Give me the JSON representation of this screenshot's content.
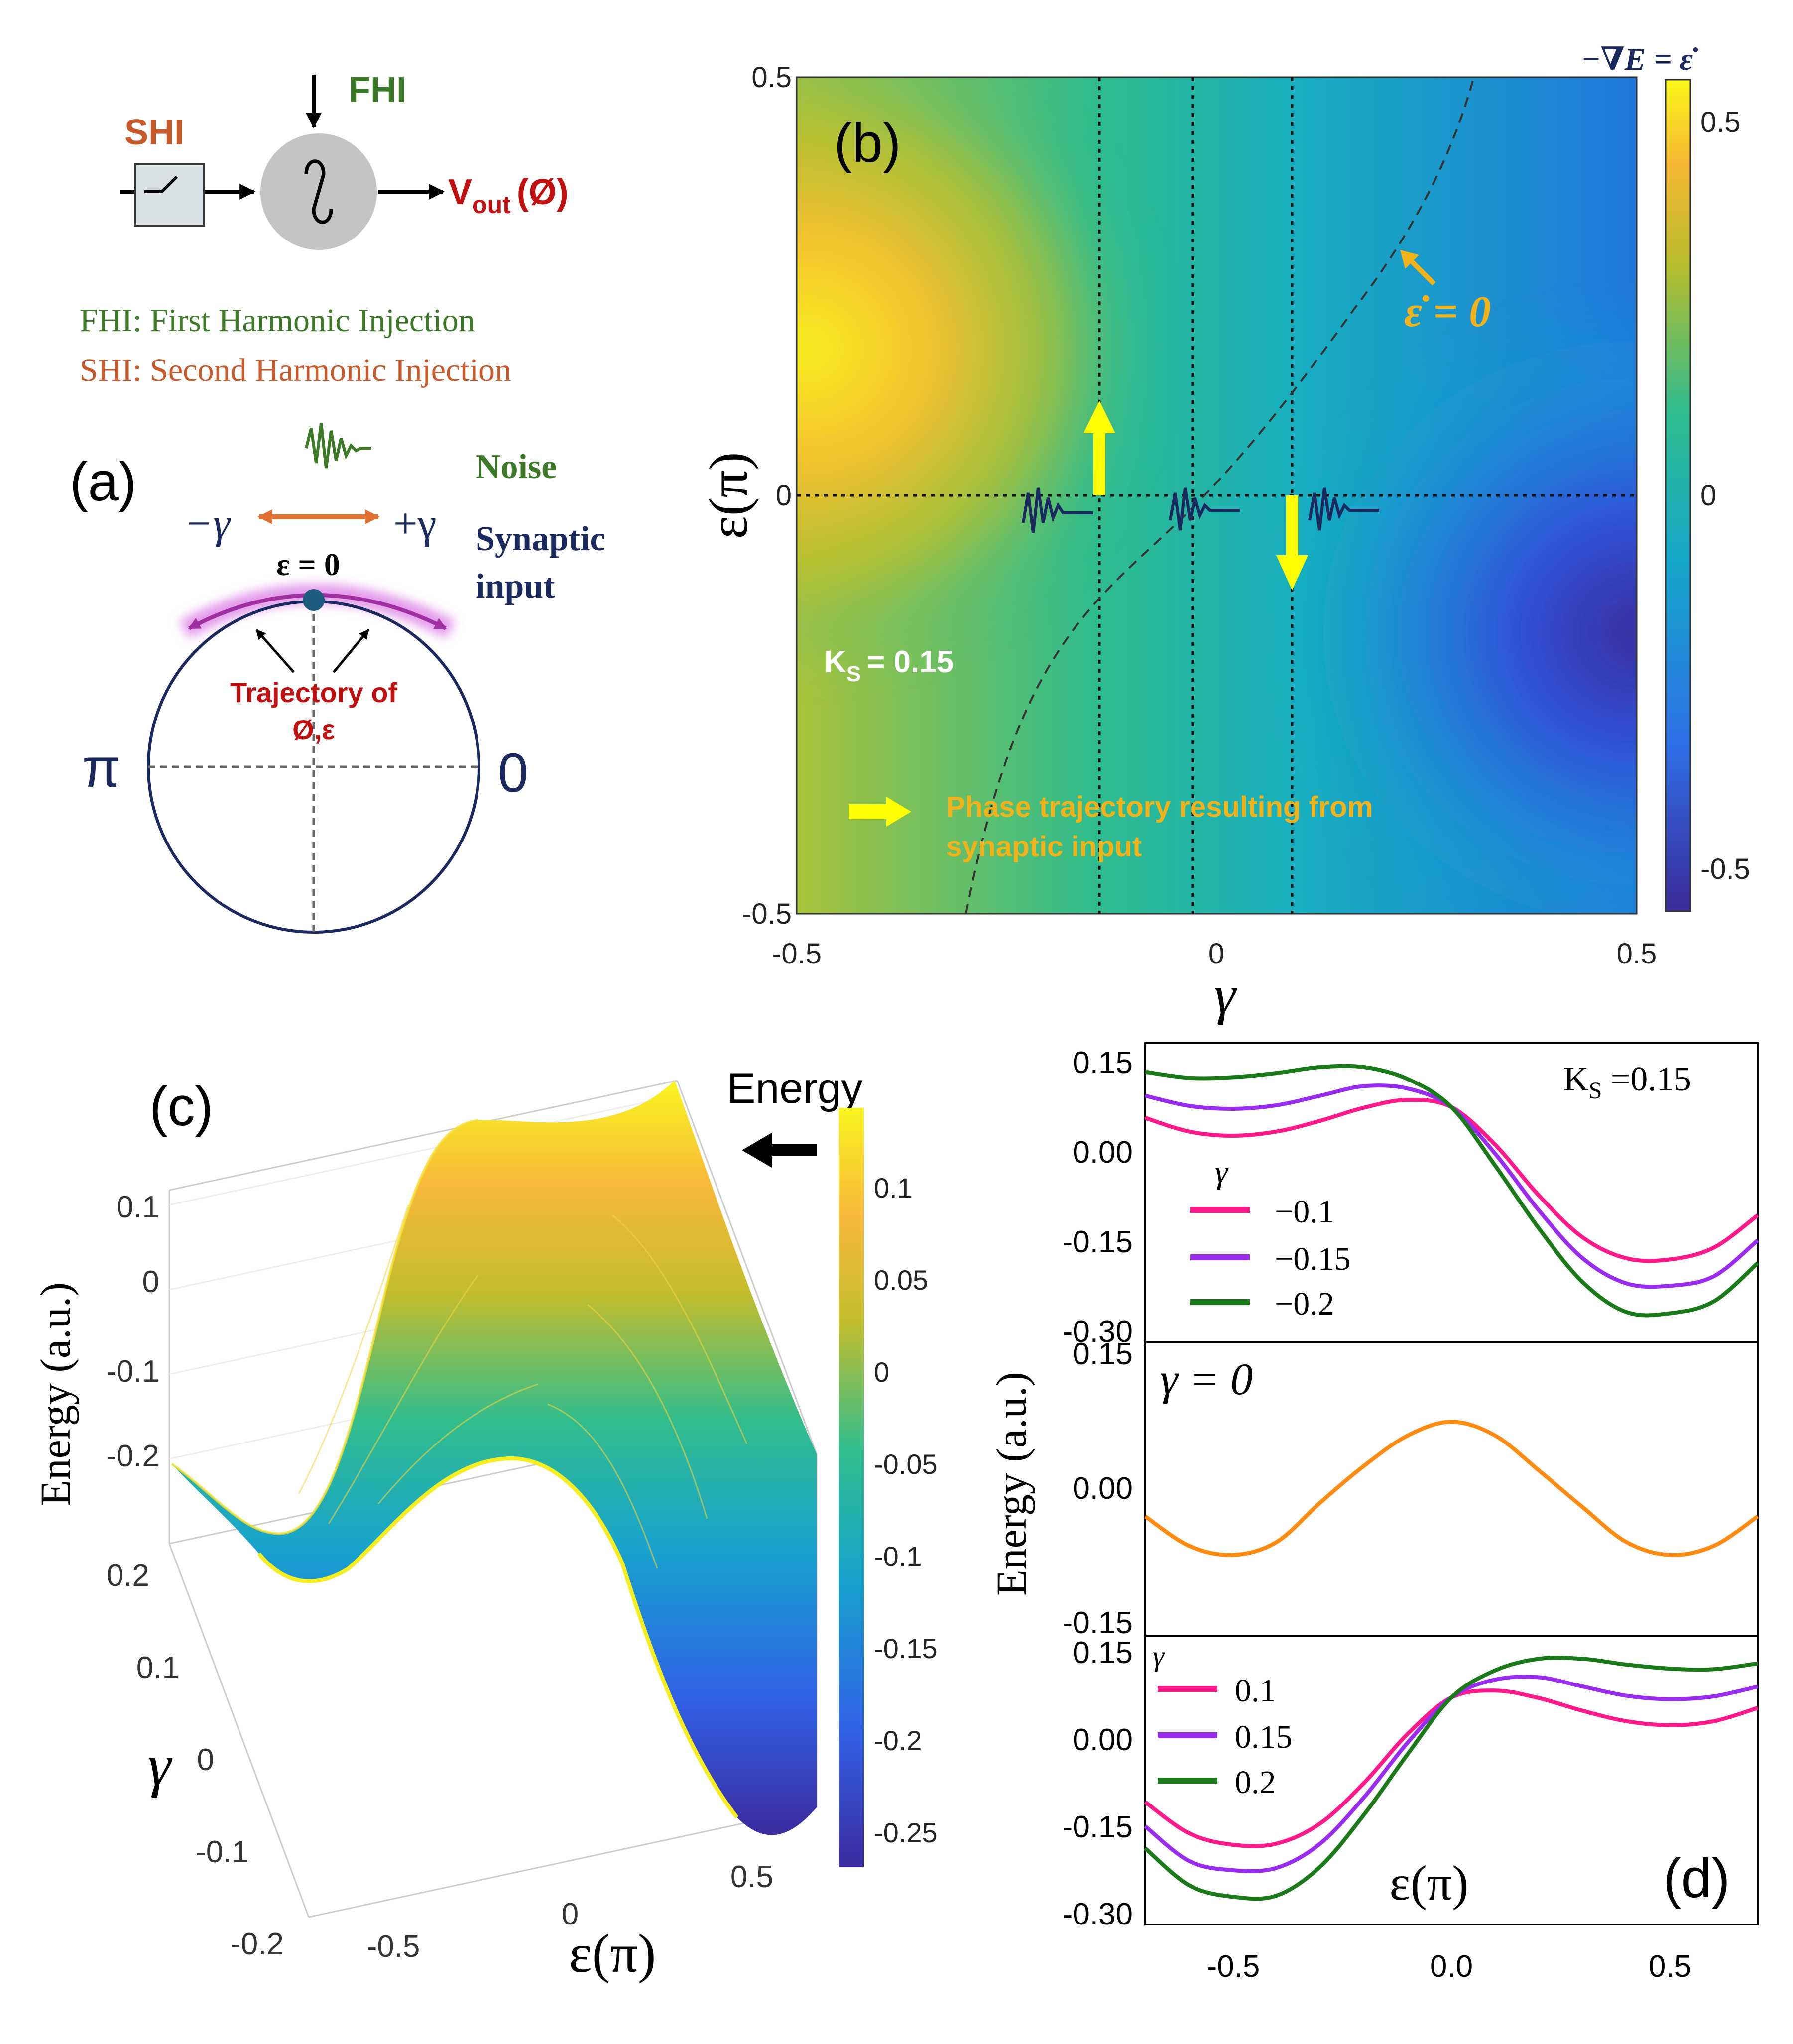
{
  "panel_a": {
    "label": "(a)",
    "fhi": "FHI",
    "shi": "SHI",
    "vout": "V",
    "vout_sub": "out",
    "vout_phi": "(Ø)",
    "legend_fhi": "FHI: First Harmonic Injection",
    "legend_shi": "SHI: Second Harmonic Injection",
    "noise": "Noise",
    "synaptic_1": "Synaptic",
    "synaptic_2": "input",
    "minus_gamma": "−γ",
    "plus_gamma": "+γ",
    "eps_zero": "ε = 0",
    "trajectory_1": "Trajectory of",
    "trajectory_2": "Ø,ε",
    "pi": "π",
    "zero": "0",
    "colors": {
      "fhi": "#3d7a28",
      "shi": "#c8592a",
      "vout": "#c01010",
      "navy": "#1a2a5e",
      "arrow": "#e07030",
      "glow": "#c040c0"
    }
  },
  "panel_b": {
    "label": "(b)",
    "cbar_title": "−∇E = ε̇",
    "eps_dot_zero": "ε̇ = 0",
    "ks": "K",
    "ks_sub": "S",
    "ks_value": "= 0.15",
    "traj_1": "Phase trajectory resulting from",
    "traj_2": "synaptic input",
    "xlabel": "γ",
    "ylabel": "ε(π)",
    "xticks": [
      "-0.5",
      "0",
      "0.5"
    ],
    "yticks": [
      "0.5",
      "0",
      "-0.5"
    ],
    "cbar_ticks": [
      "0.5",
      "0",
      "-0.5"
    ],
    "colors": {
      "yellow_arrow": "#ffff00",
      "annot": "#f2b21a",
      "noise": "#1a2a5e"
    }
  },
  "panel_c": {
    "label": "(c)",
    "energy": "Energy",
    "zlabel": "Energy (a.u.)",
    "zticks": [
      "0.1",
      "0",
      "-0.1",
      "-0.2"
    ],
    "gamma_label": "γ",
    "gamma_ticks": [
      "0.2",
      "0.1",
      "0",
      "-0.1",
      "-0.2"
    ],
    "eps_label": "ε(π)",
    "eps_ticks": [
      "-0.5",
      "0",
      "0.5"
    ],
    "cbar_ticks": [
      "0.1",
      "0.05",
      "0",
      "-0.05",
      "-0.1",
      "-0.15",
      "-0.2",
      "-0.25"
    ]
  },
  "panel_d": {
    "label": "(d)",
    "ks": "K",
    "ks_sub": "S",
    "ks_value": " =0.15",
    "ylabel": "Energy (a.u.)",
    "xlabel": "ε(π)",
    "gamma_title": "γ",
    "gamma0": "γ = 0",
    "top_yticks": [
      "0.15",
      "0.00",
      "-0.15",
      "-0.30"
    ],
    "mid_yticks": [
      "0.15",
      "0.00",
      "-0.15"
    ],
    "bot_yticks": [
      "0.15",
      "0.00",
      "-0.15",
      "-0.30"
    ],
    "xticks": [
      "-0.5",
      "0.0",
      "0.5"
    ]
  },
  "chart_data": [
    {
      "type": "heatmap",
      "panel": "(b)",
      "title": "−∇E = ε̇",
      "xlabel": "γ",
      "ylabel": "ε(π)",
      "xlim": [
        -0.5,
        0.5
      ],
      "ylim": [
        -0.5,
        0.5
      ],
      "colorbar_range": [
        -0.55,
        0.55
      ],
      "ks": 0.15,
      "vertical_lines_gamma": [
        -0.15,
        -0.03,
        0.09
      ],
      "horizontal_line_eps": 0,
      "nullcline": "ε̇ = 0"
    },
    {
      "type": "surface",
      "panel": "(c)",
      "xlabel": "ε(π)",
      "ylabel": "γ",
      "zlabel": "Energy (a.u.)",
      "xlim": [
        -0.7,
        0.7
      ],
      "ylim": [
        -0.2,
        0.2
      ],
      "zlim": [
        -0.28,
        0.14
      ],
      "colorbar_range": [
        -0.28,
        0.14
      ]
    },
    {
      "type": "line",
      "panel": "(d) top",
      "xlabel": "ε(π)",
      "ylabel": "Energy (a.u.)",
      "x": [
        -0.7,
        -0.6,
        -0.5,
        -0.4,
        -0.3,
        -0.2,
        -0.1,
        0.0,
        0.1,
        0.2,
        0.3,
        0.4,
        0.5,
        0.6,
        0.7
      ],
      "series": [
        {
          "name": "−0.1",
          "color": "#ff1a8c",
          "values": [
            0.055,
            0.032,
            0.025,
            0.032,
            0.05,
            0.072,
            0.085,
            0.073,
            0.01,
            -0.075,
            -0.145,
            -0.18,
            -0.182,
            -0.162,
            -0.108
          ]
        },
        {
          "name": "−0.15",
          "color": "#9a2cf0",
          "values": [
            0.092,
            0.075,
            0.07,
            0.076,
            0.092,
            0.108,
            0.104,
            0.073,
            -0.005,
            -0.1,
            -0.18,
            -0.222,
            -0.226,
            -0.21,
            -0.15
          ]
        },
        {
          "name": "−0.2",
          "color": "#1a7a1a",
          "values": [
            0.132,
            0.122,
            0.123,
            0.13,
            0.14,
            0.14,
            0.12,
            0.073,
            -0.025,
            -0.13,
            -0.22,
            -0.27,
            -0.272,
            -0.252,
            -0.188
          ]
        }
      ],
      "ylim": [
        -0.32,
        0.18
      ],
      "xlim": [
        -0.7,
        0.7
      ]
    },
    {
      "type": "line",
      "panel": "(d) middle",
      "x": [
        -0.7,
        -0.6,
        -0.5,
        -0.4,
        -0.3,
        -0.2,
        -0.1,
        0.0,
        0.1,
        0.2,
        0.3,
        0.4,
        0.5,
        0.6,
        0.7
      ],
      "series": [
        {
          "name": "γ = 0",
          "color": "#ff8c10",
          "values": [
            -0.03,
            -0.062,
            -0.072,
            -0.058,
            -0.015,
            0.025,
            0.058,
            0.073,
            0.058,
            0.02,
            -0.02,
            -0.058,
            -0.072,
            -0.062,
            -0.03
          ]
        }
      ],
      "ylim": [
        -0.16,
        0.16
      ],
      "xlim": [
        -0.7,
        0.7
      ]
    },
    {
      "type": "line",
      "panel": "(d) bottom",
      "x": [
        -0.7,
        -0.6,
        -0.5,
        -0.4,
        -0.3,
        -0.2,
        -0.1,
        0.0,
        0.1,
        0.2,
        0.3,
        0.4,
        0.5,
        0.6,
        0.7
      ],
      "series": [
        {
          "name": "0.1",
          "color": "#ff1a8c",
          "values": [
            -0.108,
            -0.162,
            -0.182,
            -0.18,
            -0.145,
            -0.075,
            0.01,
            0.073,
            0.085,
            0.072,
            0.05,
            0.032,
            0.025,
            0.032,
            0.055
          ]
        },
        {
          "name": "0.15",
          "color": "#9a2cf0",
          "values": [
            -0.15,
            -0.21,
            -0.226,
            -0.222,
            -0.18,
            -0.1,
            -0.005,
            0.073,
            0.104,
            0.108,
            0.092,
            0.076,
            0.07,
            0.075,
            0.092
          ]
        },
        {
          "name": "0.2",
          "color": "#1a7a1a",
          "values": [
            -0.188,
            -0.252,
            -0.272,
            -0.27,
            -0.22,
            -0.13,
            -0.025,
            0.073,
            0.12,
            0.14,
            0.14,
            0.13,
            0.123,
            0.122,
            0.132
          ]
        }
      ],
      "ylim": [
        -0.32,
        0.18
      ],
      "xlim": [
        -0.7,
        0.7
      ]
    }
  ]
}
